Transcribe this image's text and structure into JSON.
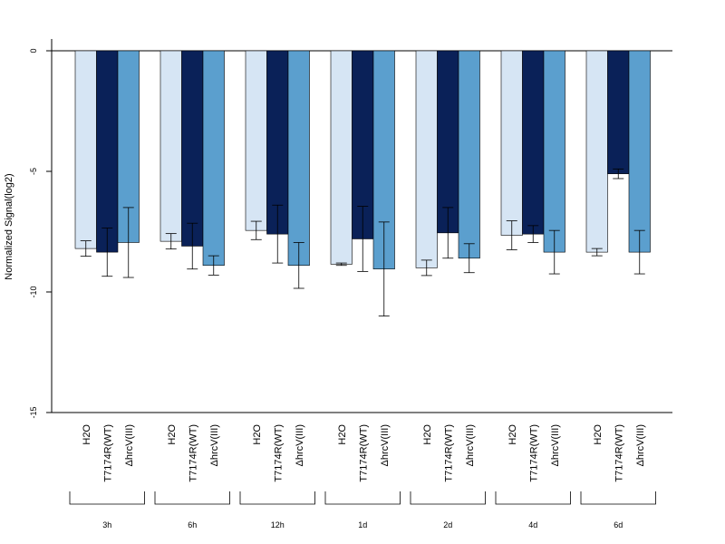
{
  "chart_data": {
    "type": "bar",
    "title": "",
    "xlabel": "",
    "ylabel": "Normalized Signal(log2)",
    "ylim": [
      -15,
      0.5
    ],
    "yticks": [
      0,
      -5,
      -10,
      -15
    ],
    "groups": [
      "3h",
      "6h",
      "12h",
      "1d",
      "2d",
      "4d",
      "6d"
    ],
    "bar_labels": [
      "H2O",
      "T7174R(WT)",
      "ΔhrcV(III)"
    ],
    "colors": [
      "#d6e5f4",
      "#0a2158",
      "#5b9fce"
    ],
    "series": [
      {
        "name": "H2O",
        "values": [
          -8.2,
          -7.9,
          -7.45,
          -8.85,
          -9.0,
          -7.65,
          -8.35
        ],
        "error": [
          0.32,
          0.32,
          0.38,
          0.05,
          0.32,
          0.6,
          0.15
        ]
      },
      {
        "name": "T7174R(WT)",
        "values": [
          -8.35,
          -8.1,
          -7.6,
          -7.8,
          -7.55,
          -7.6,
          -5.1
        ],
        "error": [
          1.0,
          0.95,
          1.2,
          1.35,
          1.05,
          0.35,
          0.2
        ]
      },
      {
        "name": "ΔhrcV(III)",
        "values": [
          -7.95,
          -8.9,
          -8.9,
          -9.05,
          -8.6,
          -8.35,
          -8.35
        ],
        "error": [
          1.45,
          0.4,
          0.95,
          1.95,
          0.6,
          0.9,
          0.9
        ]
      }
    ]
  }
}
